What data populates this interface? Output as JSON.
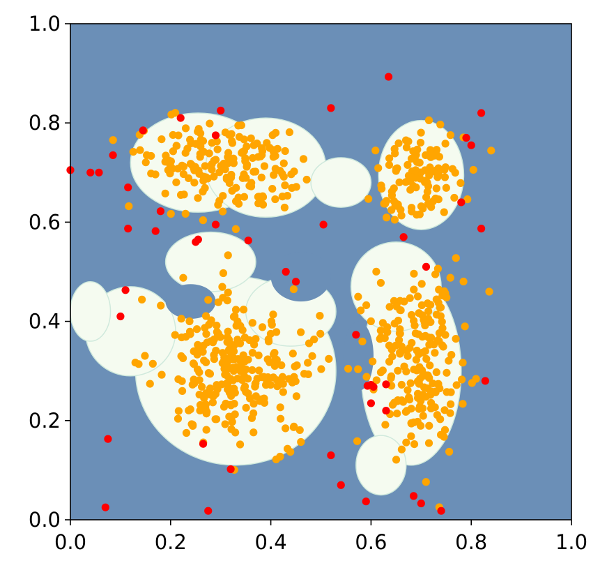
{
  "chart_data": {
    "type": "scatter",
    "title": "",
    "xlabel": "",
    "ylabel": "",
    "xlim": [
      0.0,
      1.0
    ],
    "ylim": [
      0.0,
      1.0
    ],
    "grid": false,
    "x_ticks": [
      "0.0",
      "0.2",
      "0.4",
      "0.6",
      "0.8",
      "1.0"
    ],
    "y_ticks": [
      "0.0",
      "0.2",
      "0.4",
      "0.6",
      "0.8",
      "1.0"
    ],
    "colors": {
      "outside_region": "#6b8fb7",
      "inside_region": "#f5fbf0",
      "inliers": "#ffa500",
      "outliers": "#ff0000",
      "axes": "#000000"
    },
    "cluster_centers": [
      {
        "x": 0.25,
        "y": 0.72,
        "sx": 0.07,
        "sy": 0.05,
        "n": 110
      },
      {
        "x": 0.38,
        "y": 0.71,
        "sx": 0.06,
        "sy": 0.05,
        "n": 70
      },
      {
        "x": 0.7,
        "y": 0.69,
        "sx": 0.04,
        "sy": 0.05,
        "n": 110
      },
      {
        "x": 0.33,
        "y": 0.3,
        "sx": 0.08,
        "sy": 0.08,
        "n": 270
      },
      {
        "x": 0.69,
        "y": 0.32,
        "sx": 0.05,
        "sy": 0.09,
        "n": 210
      }
    ],
    "decision_regions": [
      {
        "x": 0.255,
        "y": 0.72,
        "rx": 0.135,
        "ry": 0.1
      },
      {
        "x": 0.39,
        "y": 0.71,
        "rx": 0.12,
        "ry": 0.1
      },
      {
        "x": 0.7,
        "y": 0.695,
        "rx": 0.085,
        "ry": 0.11
      },
      {
        "x": 0.54,
        "y": 0.68,
        "rx": 0.06,
        "ry": 0.05
      },
      {
        "x": 0.33,
        "y": 0.3,
        "rx": 0.2,
        "ry": 0.19
      },
      {
        "x": 0.12,
        "y": 0.38,
        "rx": 0.09,
        "ry": 0.09
      },
      {
        "x": 0.28,
        "y": 0.52,
        "rx": 0.09,
        "ry": 0.06
      },
      {
        "x": 0.44,
        "y": 0.42,
        "rx": 0.09,
        "ry": 0.07
      },
      {
        "x": 0.68,
        "y": 0.3,
        "rx": 0.1,
        "ry": 0.19
      },
      {
        "x": 0.65,
        "y": 0.47,
        "rx": 0.09,
        "ry": 0.09
      },
      {
        "x": 0.62,
        "y": 0.11,
        "rx": 0.05,
        "ry": 0.06
      },
      {
        "x": 0.04,
        "y": 0.42,
        "rx": 0.04,
        "ry": 0.06
      }
    ],
    "holes": [
      {
        "x": 0.24,
        "y": 0.44,
        "rx": 0.05,
        "ry": 0.035
      },
      {
        "x": 0.46,
        "y": 0.49,
        "rx": 0.06,
        "ry": 0.05
      },
      {
        "x": 0.575,
        "y": 0.33,
        "rx": 0.03,
        "ry": 0.07
      }
    ],
    "outliers": [
      [
        0.0,
        0.705
      ],
      [
        0.04,
        0.7
      ],
      [
        0.057,
        0.7
      ],
      [
        0.085,
        0.735
      ],
      [
        0.145,
        0.785
      ],
      [
        0.22,
        0.81
      ],
      [
        0.3,
        0.825
      ],
      [
        0.29,
        0.775
      ],
      [
        0.52,
        0.83
      ],
      [
        0.635,
        0.893
      ],
      [
        0.82,
        0.82
      ],
      [
        0.79,
        0.77
      ],
      [
        0.8,
        0.755
      ],
      [
        0.78,
        0.64
      ],
      [
        0.82,
        0.587
      ],
      [
        0.115,
        0.67
      ],
      [
        0.18,
        0.622
      ],
      [
        0.29,
        0.595
      ],
      [
        0.17,
        0.582
      ],
      [
        0.115,
        0.587
      ],
      [
        0.505,
        0.595
      ],
      [
        0.25,
        0.56
      ],
      [
        0.255,
        0.565
      ],
      [
        0.355,
        0.563
      ],
      [
        0.43,
        0.5
      ],
      [
        0.45,
        0.48
      ],
      [
        0.11,
        0.463
      ],
      [
        0.1,
        0.41
      ],
      [
        0.665,
        0.57
      ],
      [
        0.71,
        0.51
      ],
      [
        0.57,
        0.373
      ],
      [
        0.828,
        0.28
      ],
      [
        0.6,
        0.272
      ],
      [
        0.605,
        0.268
      ],
      [
        0.593,
        0.27
      ],
      [
        0.63,
        0.273
      ],
      [
        0.6,
        0.235
      ],
      [
        0.63,
        0.22
      ],
      [
        0.075,
        0.163
      ],
      [
        0.265,
        0.153
      ],
      [
        0.52,
        0.13
      ],
      [
        0.32,
        0.102
      ],
      [
        0.54,
        0.07
      ],
      [
        0.685,
        0.048
      ],
      [
        0.59,
        0.037
      ],
      [
        0.7,
        0.033
      ],
      [
        0.07,
        0.025
      ],
      [
        0.275,
        0.018
      ],
      [
        0.74,
        0.018
      ]
    ]
  }
}
